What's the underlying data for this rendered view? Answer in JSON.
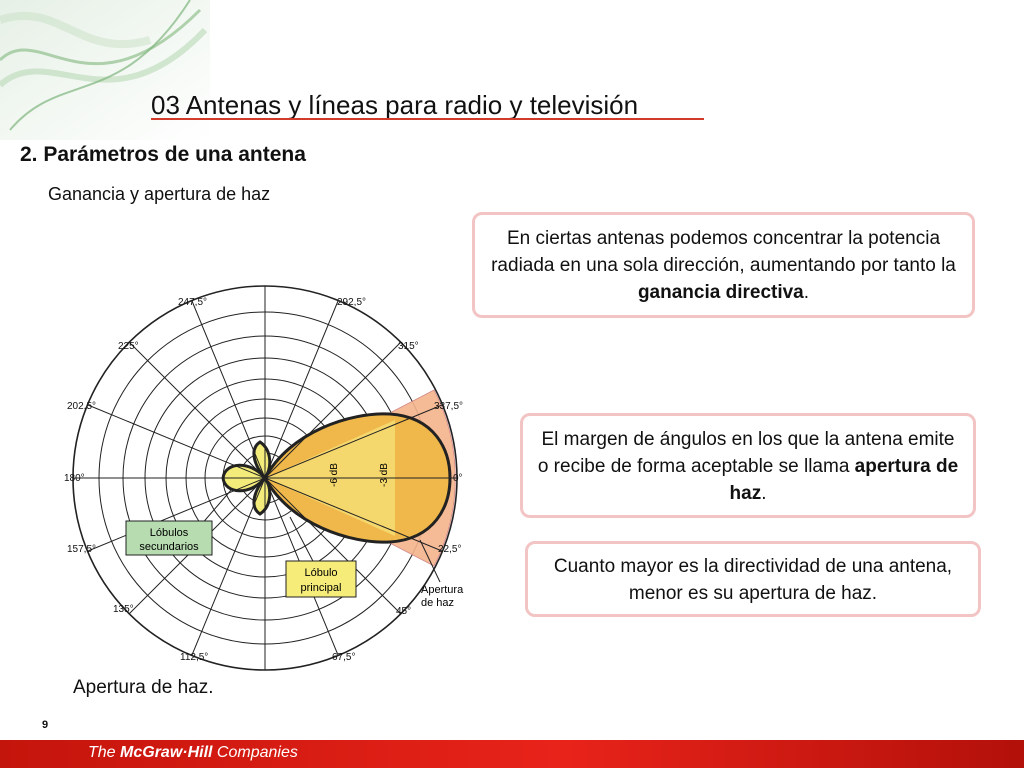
{
  "header": {
    "title": "03  Antenas y líneas para radio y televisión"
  },
  "section": {
    "heading": "2. Parámetros de una antena",
    "subheading": "Ganancia y apertura de haz"
  },
  "callouts": {
    "first": {
      "before": "En ciertas antenas podemos concentrar la potencia radiada en una sola dirección, aumentando por tanto la ",
      "bold": "ganancia directiva",
      "after": "."
    },
    "second": {
      "before": "El margen de ángulos en los que la antena emite o recibe de forma aceptable se llama ",
      "bold": "apertura de haz",
      "after": "."
    },
    "third": {
      "text": "Cuanto mayor es la directividad de una antena, menor es su apertura de haz."
    }
  },
  "diagram": {
    "angle_labels": {
      "a0": "0°",
      "a22_5": "22,5°",
      "a45": "45°",
      "a67_5": "67,5°",
      "a112_5": "112,5°",
      "a135": "135°",
      "a157_5": "157,5°",
      "a180": "180°",
      "a202_5": "202,5°",
      "a225": "225°",
      "a247_5": "247,5°",
      "a292_5": "292,5°",
      "a315": "315°",
      "a337_5": "337,5°"
    },
    "db_labels": {
      "minus6": "-6 dB",
      "minus3": "-3 dB"
    },
    "secondary_lobes_label": [
      "Lóbulos",
      "secundarios"
    ],
    "main_lobe_label": [
      "Lóbulo",
      "principal"
    ],
    "beamwidth_label": [
      "Apertura",
      "de haz"
    ],
    "colors": {
      "main_lobe": "#f0b74a",
      "secondary_lobe": "#f4ec7a",
      "beam_sector": "#f5b48c",
      "label_box": "#b7dcb0"
    }
  },
  "figure_caption": "Apertura de haz.",
  "page_number": "9",
  "footer": {
    "the": "The ",
    "brand": "McGraw·Hill",
    "companies": " Companies"
  }
}
